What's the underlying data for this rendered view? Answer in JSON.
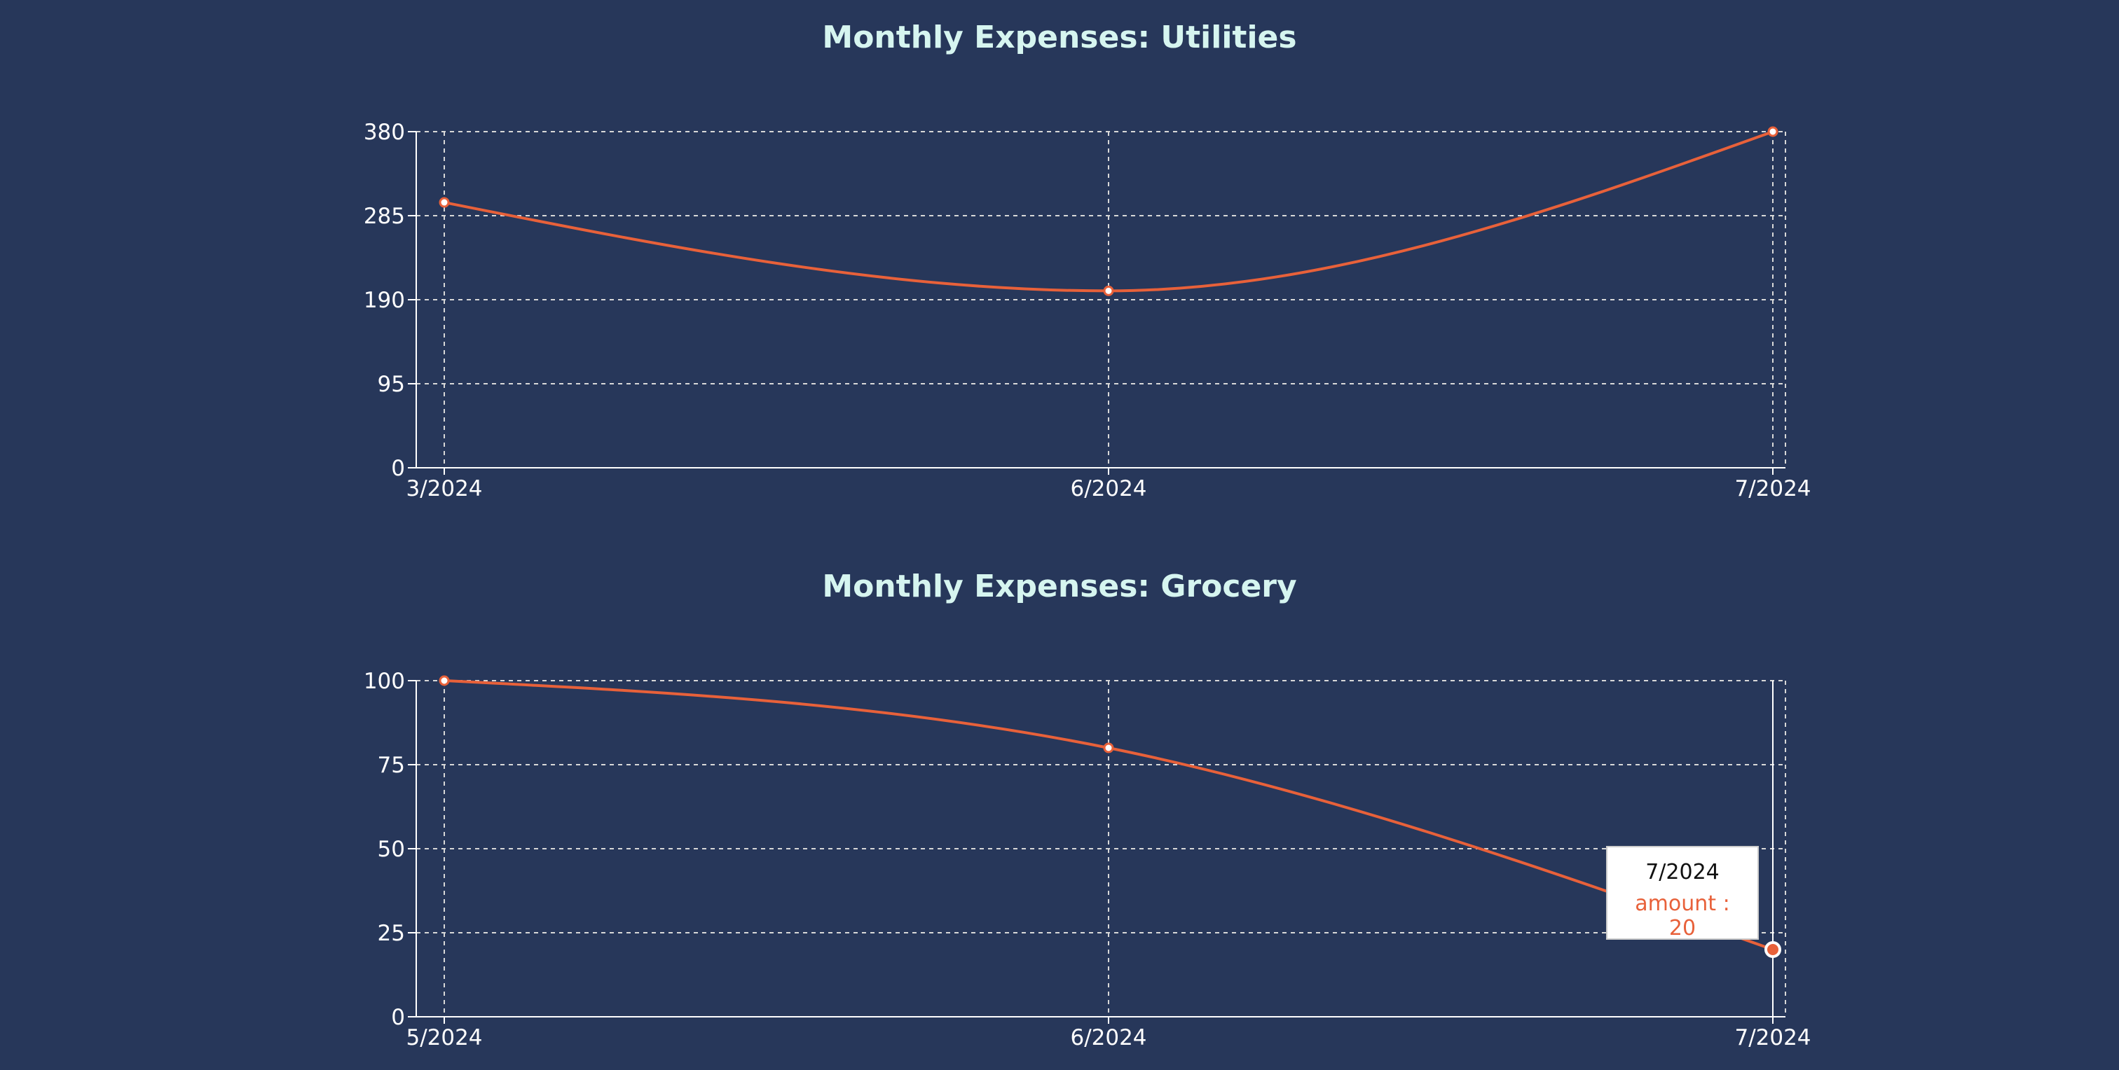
{
  "colors": {
    "background": "#27375a",
    "title": "#d6f5f0",
    "line": "#e8613a",
    "grid": "#d8d8d8",
    "axis": "#ffffff"
  },
  "chart_data": [
    {
      "type": "line",
      "title": "Monthly Expenses: Utilities",
      "categories": [
        "3/2024",
        "6/2024",
        "7/2024"
      ],
      "series": [
        {
          "key": "amount",
          "values": [
            300,
            200,
            380
          ]
        }
      ],
      "yticks": [
        0,
        95,
        190,
        285,
        380
      ],
      "ylim": [
        0,
        380
      ],
      "grid": true,
      "tooltip": null
    },
    {
      "type": "line",
      "title": "Monthly Expenses: Grocery",
      "categories": [
        "5/2024",
        "6/2024",
        "7/2024"
      ],
      "series": [
        {
          "key": "amount",
          "values": [
            100,
            80,
            20
          ]
        }
      ],
      "yticks": [
        0,
        25,
        50,
        75,
        100
      ],
      "ylim": [
        0,
        100
      ],
      "grid": true,
      "tooltip": {
        "label": "7/2024",
        "text": "amount : 20",
        "index": 2
      }
    }
  ]
}
